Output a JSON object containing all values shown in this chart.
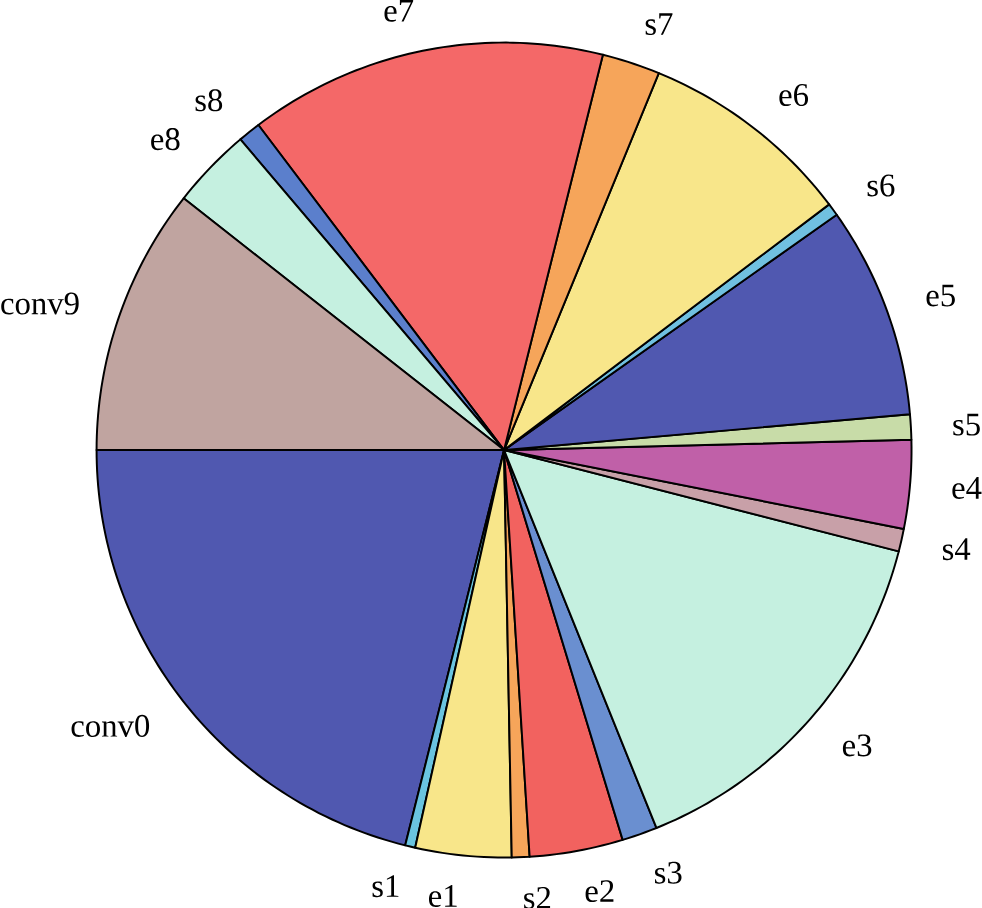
{
  "chart_data": {
    "type": "pie",
    "categories": [
      "conv0",
      "s1",
      "e1",
      "s2",
      "e2",
      "s3",
      "e3",
      "s4",
      "e4",
      "s5",
      "e5",
      "s6",
      "e6",
      "s7",
      "e7",
      "s8",
      "e8",
      "conv9"
    ],
    "values": [
      21.1,
      0.4,
      3.8,
      0.7,
      3.7,
      1.4,
      14.9,
      0.9,
      3.5,
      1.0,
      8.4,
      0.5,
      8.5,
      2.3,
      14.2,
      0.9,
      3.2,
      10.6
    ],
    "colors": [
      "#5058b0",
      "#6ac4e0",
      "#f8e68a",
      "#f6a55a",
      "#f2625f",
      "#6a8fd0",
      "#c5f0e0",
      "#c8a0a8",
      "#c060a8",
      "#c8dca8",
      "#5058b0",
      "#70c0e0",
      "#f8e68a",
      "#f6a55a",
      "#f46868",
      "#5b7fcc",
      "#c5f0e0",
      "#c0a4a0"
    ]
  }
}
